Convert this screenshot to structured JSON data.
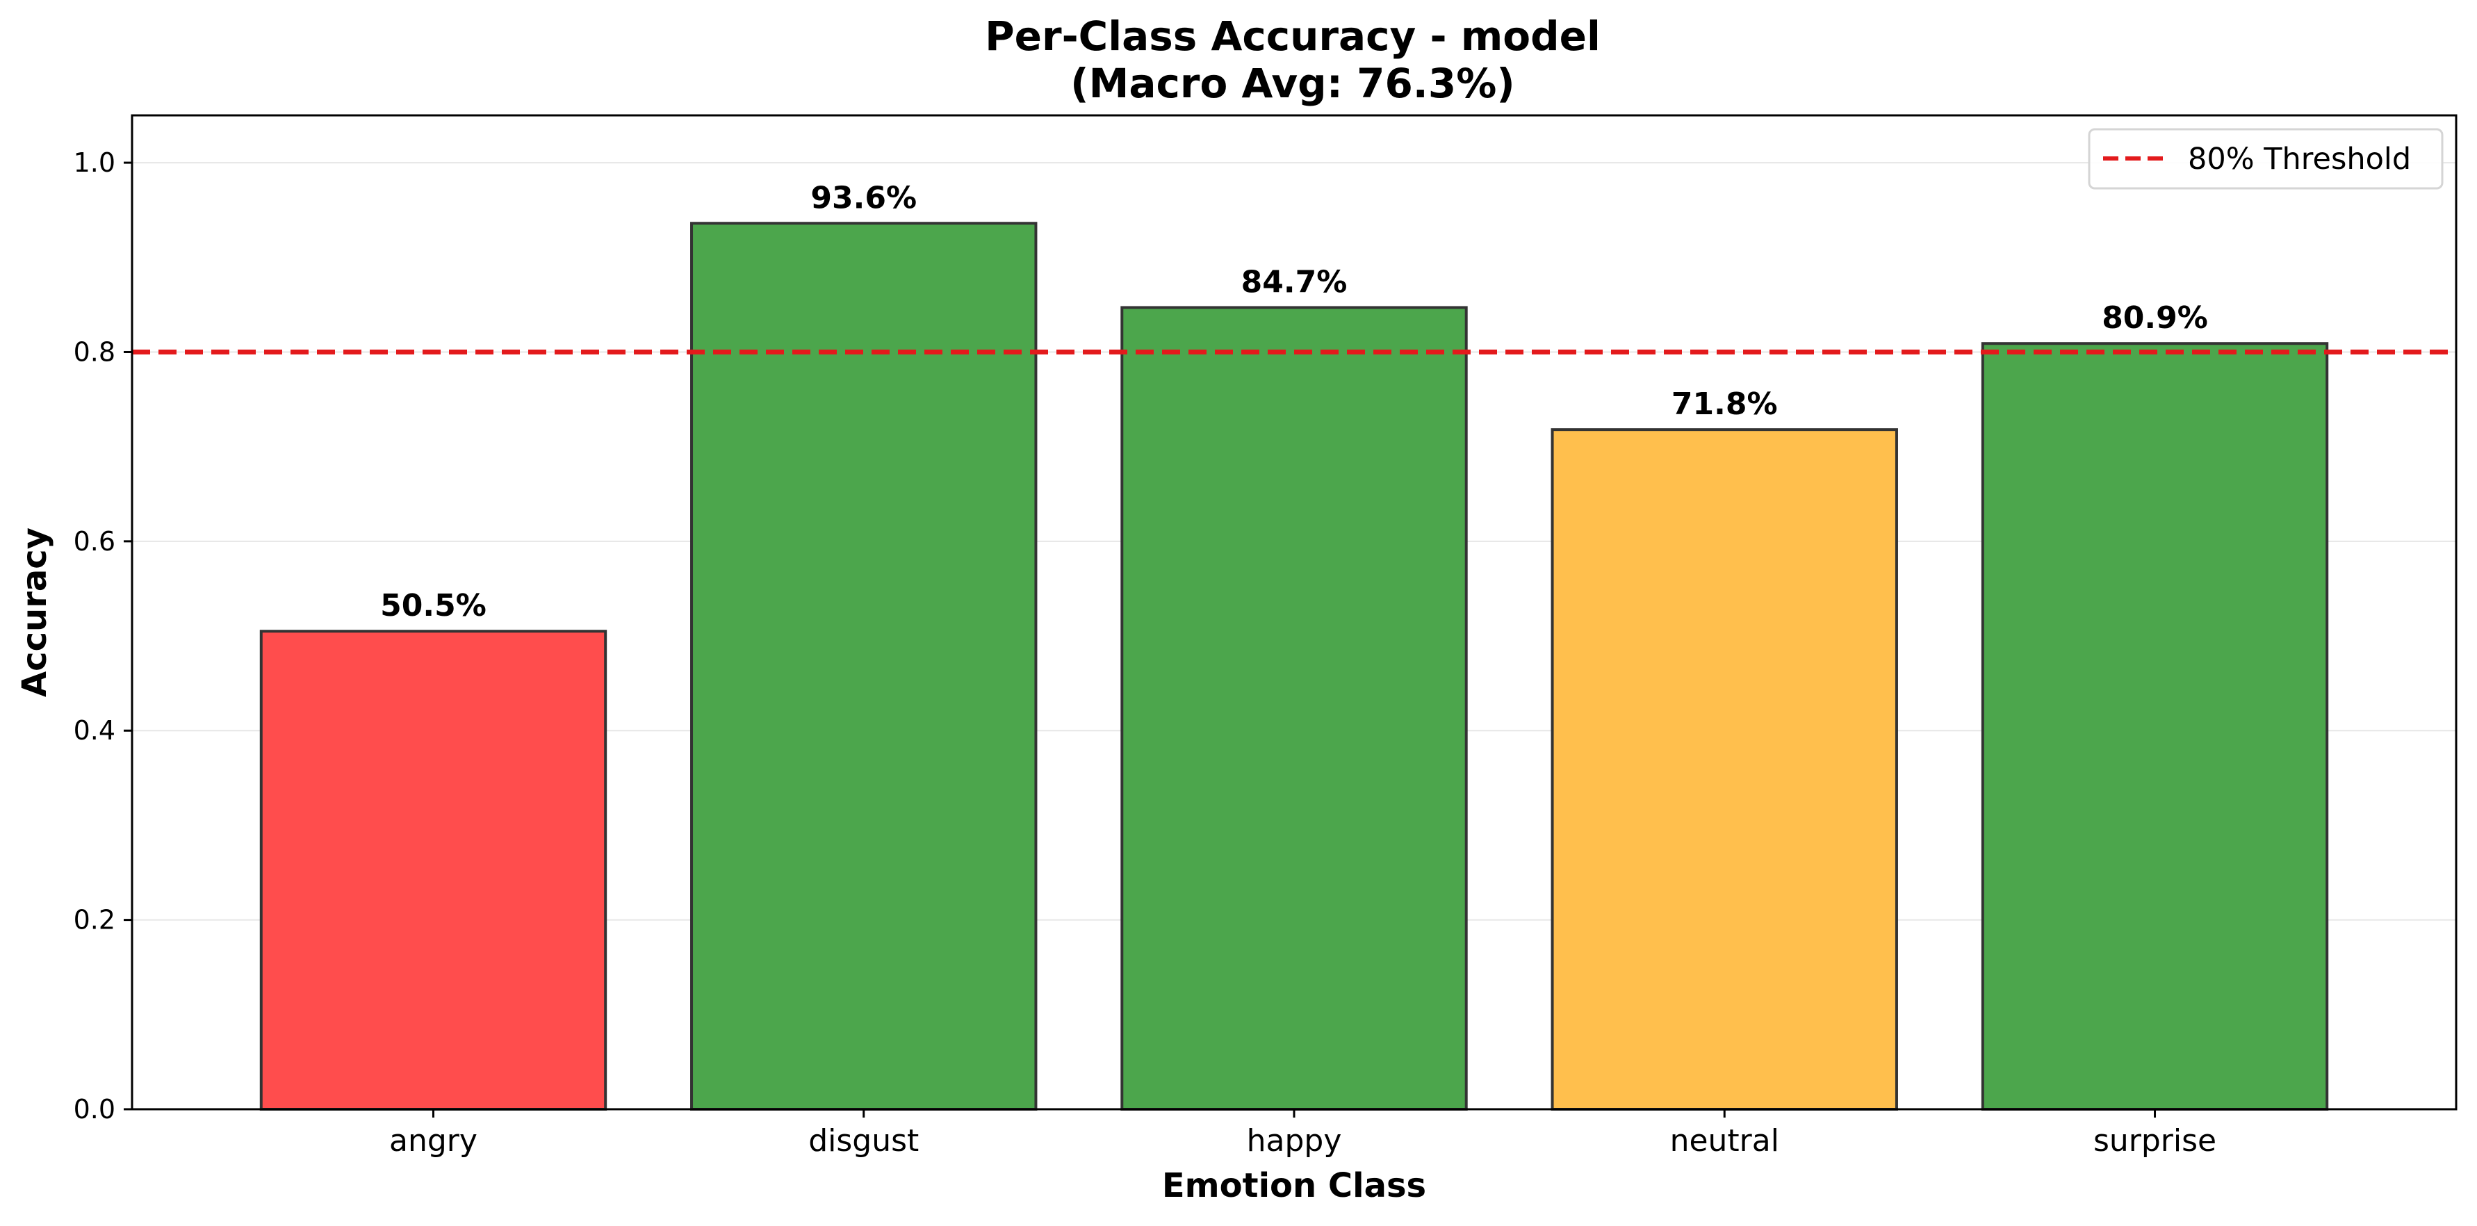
{
  "chart_data": {
    "type": "bar",
    "title": "Per-Class Accuracy - model",
    "subtitle": "(Macro Avg: 76.3%)",
    "xlabel": "Emotion Class",
    "ylabel": "Accuracy",
    "categories": [
      "angry",
      "disgust",
      "happy",
      "neutral",
      "surprise"
    ],
    "values": [
      0.505,
      0.936,
      0.847,
      0.718,
      0.809
    ],
    "value_labels": [
      "50.5%",
      "93.6%",
      "84.7%",
      "71.8%",
      "80.9%"
    ],
    "bar_colors": [
      "#ff4d4d",
      "#4ca64c",
      "#4ca64c",
      "#ffbf4d",
      "#4ca64c"
    ],
    "bar_edge_color": "#333333",
    "ylim": [
      0,
      1.05
    ],
    "yticks": [
      0.0,
      0.2,
      0.4,
      0.6,
      0.8,
      1.0
    ],
    "ytick_labels": [
      "0.0",
      "0.2",
      "0.4",
      "0.6",
      "0.8",
      "1.0"
    ],
    "grid": "y",
    "threshold": {
      "value": 0.8,
      "label": "80% Threshold",
      "color": "#e31a1c",
      "style": "dashed"
    },
    "legend_position": "top-right"
  }
}
